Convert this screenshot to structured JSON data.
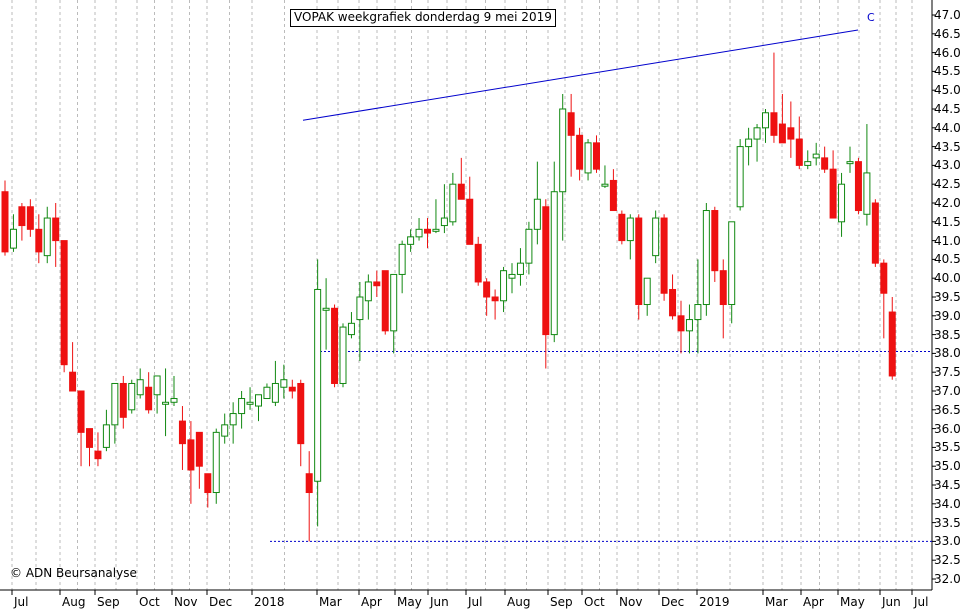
{
  "chart_data": {
    "type": "candlestick",
    "title": "VOPAK weekgrafiek donderdag 9 mei 2019",
    "credit": "© ADN Beursanalyse",
    "ylim": [
      31.85,
      47.3
    ],
    "y_ticks": [
      "47.0",
      "46.5",
      "46.0",
      "45.5",
      "45.0",
      "44.5",
      "44.0",
      "43.5",
      "43.0",
      "42.5",
      "42.0",
      "41.5",
      "41.0",
      "40.5",
      "40.0",
      "39.5",
      "39.0",
      "38.5",
      "38.0",
      "37.5",
      "37.0",
      "36.5",
      "36.0",
      "35.5",
      "35.0",
      "34.5",
      "34.0",
      "33.5",
      "33.0",
      "32.5",
      "32.0"
    ],
    "x_ticks": [
      "Jul",
      "Aug",
      "Sep",
      "Oct",
      "Nov",
      "Dec",
      "2018",
      "Mar",
      "Apr",
      "May",
      "Jun",
      "Jul",
      "Aug",
      "Sep",
      "Oct",
      "Nov",
      "Dec",
      "2019",
      "Mar",
      "Apr",
      "May",
      "Jun",
      "Jul"
    ],
    "grid": true,
    "colors": {
      "up": "#118811",
      "down": "#ee1111",
      "grid": "#bbbbbb",
      "line": "#0000cc",
      "axis": "#000000"
    },
    "candles": [
      {
        "o": 42.3,
        "h": 42.6,
        "l": 40.6,
        "c": 40.7
      },
      {
        "o": 40.8,
        "h": 41.7,
        "l": 40.7,
        "c": 41.3
      },
      {
        "o": 41.9,
        "h": 42.0,
        "l": 41.0,
        "c": 41.4
      },
      {
        "o": 41.9,
        "h": 42.1,
        "l": 41.1,
        "c": 41.3
      },
      {
        "o": 41.3,
        "h": 41.7,
        "l": 40.4,
        "c": 40.7
      },
      {
        "o": 40.6,
        "h": 41.9,
        "l": 40.4,
        "c": 41.6
      },
      {
        "o": 41.6,
        "h": 42.0,
        "l": 40.3,
        "c": 41.0
      },
      {
        "o": 41.0,
        "h": 41.0,
        "l": 37.5,
        "c": 37.7
      },
      {
        "o": 37.5,
        "h": 38.3,
        "l": 37.0,
        "c": 37.0
      },
      {
        "o": 37.0,
        "h": 37.0,
        "l": 35.0,
        "c": 35.9
      },
      {
        "o": 36.0,
        "h": 36.0,
        "l": 35.0,
        "c": 35.5
      },
      {
        "o": 35.4,
        "h": 35.9,
        "l": 35.0,
        "c": 35.2
      },
      {
        "o": 35.5,
        "h": 36.5,
        "l": 35.4,
        "c": 36.1
      },
      {
        "o": 36.1,
        "h": 37.2,
        "l": 35.6,
        "c": 37.2
      },
      {
        "o": 37.2,
        "h": 37.4,
        "l": 36.0,
        "c": 36.3
      },
      {
        "o": 36.5,
        "h": 37.3,
        "l": 36.4,
        "c": 37.2
      },
      {
        "o": 36.9,
        "h": 37.6,
        "l": 36.8,
        "c": 37.3
      },
      {
        "o": 37.1,
        "h": 37.5,
        "l": 36.4,
        "c": 36.5
      },
      {
        "o": 36.9,
        "h": 37.4,
        "l": 36.4,
        "c": 37.4
      },
      {
        "o": 36.7,
        "h": 37.6,
        "l": 35.8,
        "c": 36.7
      },
      {
        "o": 36.7,
        "h": 37.4,
        "l": 36.6,
        "c": 36.8
      },
      {
        "o": 36.2,
        "h": 36.6,
        "l": 34.9,
        "c": 35.6
      },
      {
        "o": 35.7,
        "h": 36.2,
        "l": 34.0,
        "c": 34.9
      },
      {
        "o": 35.9,
        "h": 35.9,
        "l": 34.4,
        "c": 35.0
      },
      {
        "o": 34.8,
        "h": 34.8,
        "l": 33.9,
        "c": 34.3
      },
      {
        "o": 34.3,
        "h": 36.0,
        "l": 34.0,
        "c": 35.9
      },
      {
        "o": 35.8,
        "h": 36.4,
        "l": 35.6,
        "c": 36.1
      },
      {
        "o": 36.1,
        "h": 36.7,
        "l": 35.6,
        "c": 36.4
      },
      {
        "o": 36.4,
        "h": 37.0,
        "l": 36.0,
        "c": 36.8
      },
      {
        "o": 36.7,
        "h": 37.1,
        "l": 36.5,
        "c": 36.7
      },
      {
        "o": 36.6,
        "h": 36.9,
        "l": 36.2,
        "c": 36.9
      },
      {
        "o": 36.8,
        "h": 37.2,
        "l": 36.8,
        "c": 37.1
      },
      {
        "o": 36.7,
        "h": 37.8,
        "l": 36.6,
        "c": 37.2
      },
      {
        "o": 37.1,
        "h": 37.7,
        "l": 36.8,
        "c": 37.3
      },
      {
        "o": 37.1,
        "h": 37.3,
        "l": 36.8,
        "c": 37.0
      },
      {
        "o": 37.2,
        "h": 37.3,
        "l": 35.0,
        "c": 35.6
      },
      {
        "o": 34.8,
        "h": 35.4,
        "l": 33.0,
        "c": 34.3
      },
      {
        "o": 34.6,
        "h": 40.5,
        "l": 33.4,
        "c": 39.7
      },
      {
        "o": 39.2,
        "h": 40.0,
        "l": 38.1,
        "c": 39.2
      },
      {
        "o": 39.2,
        "h": 39.3,
        "l": 37.1,
        "c": 37.2
      },
      {
        "o": 37.2,
        "h": 38.8,
        "l": 37.1,
        "c": 38.7
      },
      {
        "o": 38.5,
        "h": 39.1,
        "l": 38.4,
        "c": 38.8
      },
      {
        "o": 38.9,
        "h": 39.9,
        "l": 37.8,
        "c": 39.5
      },
      {
        "o": 39.4,
        "h": 40.1,
        "l": 38.9,
        "c": 39.9
      },
      {
        "o": 39.9,
        "h": 40.2,
        "l": 39.5,
        "c": 39.8
      },
      {
        "o": 40.2,
        "h": 40.2,
        "l": 38.5,
        "c": 38.6
      },
      {
        "o": 38.6,
        "h": 40.1,
        "l": 38.0,
        "c": 40.1
      },
      {
        "o": 40.1,
        "h": 41.0,
        "l": 39.6,
        "c": 40.9
      },
      {
        "o": 40.9,
        "h": 41.3,
        "l": 40.7,
        "c": 41.1
      },
      {
        "o": 41.1,
        "h": 41.6,
        "l": 41.0,
        "c": 41.3
      },
      {
        "o": 41.3,
        "h": 41.6,
        "l": 40.8,
        "c": 41.2
      },
      {
        "o": 41.3,
        "h": 42.1,
        "l": 41.2,
        "c": 41.3
      },
      {
        "o": 41.4,
        "h": 42.5,
        "l": 41.2,
        "c": 41.6
      },
      {
        "o": 41.5,
        "h": 42.8,
        "l": 41.4,
        "c": 42.5
      },
      {
        "o": 42.5,
        "h": 43.2,
        "l": 42.1,
        "c": 42.1
      },
      {
        "o": 42.1,
        "h": 42.7,
        "l": 40.9,
        "c": 40.9
      },
      {
        "o": 40.9,
        "h": 41.1,
        "l": 39.8,
        "c": 39.9
      },
      {
        "o": 39.9,
        "h": 40.0,
        "l": 39.0,
        "c": 39.5
      },
      {
        "o": 39.5,
        "h": 39.7,
        "l": 38.9,
        "c": 39.4
      },
      {
        "o": 39.4,
        "h": 40.3,
        "l": 39.1,
        "c": 40.2
      },
      {
        "o": 40.0,
        "h": 40.4,
        "l": 39.6,
        "c": 40.1
      },
      {
        "o": 40.1,
        "h": 40.8,
        "l": 39.8,
        "c": 40.4
      },
      {
        "o": 40.4,
        "h": 41.5,
        "l": 40.1,
        "c": 41.3
      },
      {
        "o": 41.3,
        "h": 43.1,
        "l": 40.9,
        "c": 42.1
      },
      {
        "o": 41.9,
        "h": 42.1,
        "l": 37.6,
        "c": 38.5
      },
      {
        "o": 38.5,
        "h": 43.1,
        "l": 38.3,
        "c": 42.3
      },
      {
        "o": 42.3,
        "h": 44.9,
        "l": 41.0,
        "c": 44.5
      },
      {
        "o": 44.4,
        "h": 44.9,
        "l": 42.7,
        "c": 43.8
      },
      {
        "o": 43.8,
        "h": 44.0,
        "l": 42.6,
        "c": 42.9
      },
      {
        "o": 42.8,
        "h": 43.7,
        "l": 42.6,
        "c": 43.6
      },
      {
        "o": 43.6,
        "h": 43.8,
        "l": 42.8,
        "c": 42.9
      },
      {
        "o": 42.5,
        "h": 43.0,
        "l": 42.4,
        "c": 42.5
      },
      {
        "o": 42.6,
        "h": 42.9,
        "l": 41.8,
        "c": 41.8
      },
      {
        "o": 41.7,
        "h": 41.8,
        "l": 40.9,
        "c": 41.0
      },
      {
        "o": 41.0,
        "h": 41.7,
        "l": 40.5,
        "c": 41.6
      },
      {
        "o": 41.6,
        "h": 41.7,
        "l": 38.9,
        "c": 39.3
      },
      {
        "o": 39.3,
        "h": 40.0,
        "l": 39.0,
        "c": 40.0
      },
      {
        "o": 40.6,
        "h": 41.8,
        "l": 40.4,
        "c": 41.6
      },
      {
        "o": 41.6,
        "h": 41.7,
        "l": 39.4,
        "c": 39.6
      },
      {
        "o": 39.7,
        "h": 40.1,
        "l": 38.9,
        "c": 39.0
      },
      {
        "o": 39.0,
        "h": 39.4,
        "l": 38.0,
        "c": 38.6
      },
      {
        "o": 38.6,
        "h": 39.3,
        "l": 38.0,
        "c": 38.9
      },
      {
        "o": 38.9,
        "h": 40.5,
        "l": 38.0,
        "c": 39.3
      },
      {
        "o": 39.3,
        "h": 42.0,
        "l": 39.0,
        "c": 41.8
      },
      {
        "o": 41.8,
        "h": 41.9,
        "l": 39.9,
        "c": 40.2
      },
      {
        "o": 40.2,
        "h": 40.5,
        "l": 38.4,
        "c": 39.3
      },
      {
        "o": 39.3,
        "h": 41.5,
        "l": 38.8,
        "c": 41.5
      },
      {
        "o": 41.9,
        "h": 43.7,
        "l": 41.8,
        "c": 43.5
      },
      {
        "o": 43.5,
        "h": 44.0,
        "l": 43.0,
        "c": 43.7
      },
      {
        "o": 43.7,
        "h": 44.1,
        "l": 43.1,
        "c": 44.0
      },
      {
        "o": 44.0,
        "h": 44.5,
        "l": 43.6,
        "c": 44.4
      },
      {
        "o": 44.4,
        "h": 46.0,
        "l": 43.6,
        "c": 43.8
      },
      {
        "o": 44.1,
        "h": 44.9,
        "l": 43.7,
        "c": 43.6
      },
      {
        "o": 44.0,
        "h": 44.7,
        "l": 43.2,
        "c": 43.7
      },
      {
        "o": 43.7,
        "h": 44.3,
        "l": 42.9,
        "c": 43.0
      },
      {
        "o": 43.0,
        "h": 43.4,
        "l": 42.9,
        "c": 43.1
      },
      {
        "o": 43.2,
        "h": 43.6,
        "l": 43.0,
        "c": 43.3
      },
      {
        "o": 43.2,
        "h": 43.5,
        "l": 42.8,
        "c": 42.9
      },
      {
        "o": 42.9,
        "h": 43.4,
        "l": 41.6,
        "c": 41.6
      },
      {
        "o": 41.5,
        "h": 42.8,
        "l": 41.1,
        "c": 42.5
      },
      {
        "o": 43.1,
        "h": 43.5,
        "l": 42.8,
        "c": 43.1
      },
      {
        "o": 43.1,
        "h": 43.2,
        "l": 41.7,
        "c": 41.8
      },
      {
        "o": 41.7,
        "h": 44.1,
        "l": 41.4,
        "c": 42.8
      },
      {
        "o": 42.0,
        "h": 42.1,
        "l": 40.3,
        "c": 40.4
      },
      {
        "o": 40.4,
        "h": 40.5,
        "l": 38.4,
        "c": 39.6
      },
      {
        "o": 39.1,
        "h": 39.5,
        "l": 37.3,
        "c": 37.4
      }
    ],
    "trendline": {
      "label": "C",
      "from": 44.2,
      "to": 46.6
    },
    "support_levels": [
      38.05,
      33.0
    ]
  }
}
